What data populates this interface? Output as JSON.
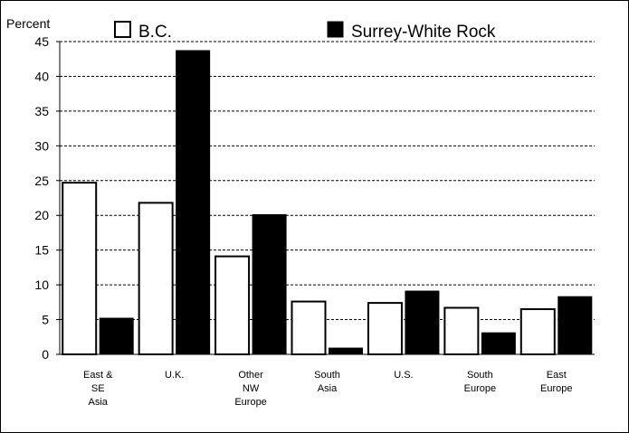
{
  "chart_data": {
    "type": "bar",
    "title": "",
    "ylabel": "Percent",
    "xlabel": "",
    "ylim": [
      0,
      45
    ],
    "yticks": [
      0,
      5,
      10,
      15,
      20,
      25,
      30,
      35,
      40,
      45
    ],
    "grid": "horizontal dashed",
    "legend_position": "top",
    "categories": [
      [
        "East &",
        "SE",
        "Asia"
      ],
      [
        "U.K."
      ],
      [
        "Other",
        "NW",
        "Europe"
      ],
      [
        "South",
        "Asia"
      ],
      [
        "U.S."
      ],
      [
        "South",
        "Europe"
      ],
      [
        "East",
        "Europe"
      ]
    ],
    "series": [
      {
        "name": "B.C.",
        "fill": "#ffffff",
        "values": [
          24.7,
          21.8,
          14.1,
          7.6,
          7.4,
          6.7,
          6.5
        ]
      },
      {
        "name": "Surrey-White Rock",
        "fill": "#000000",
        "values": [
          5.2,
          43.7,
          20.1,
          0.9,
          9.1,
          3.1,
          8.3
        ]
      }
    ]
  }
}
